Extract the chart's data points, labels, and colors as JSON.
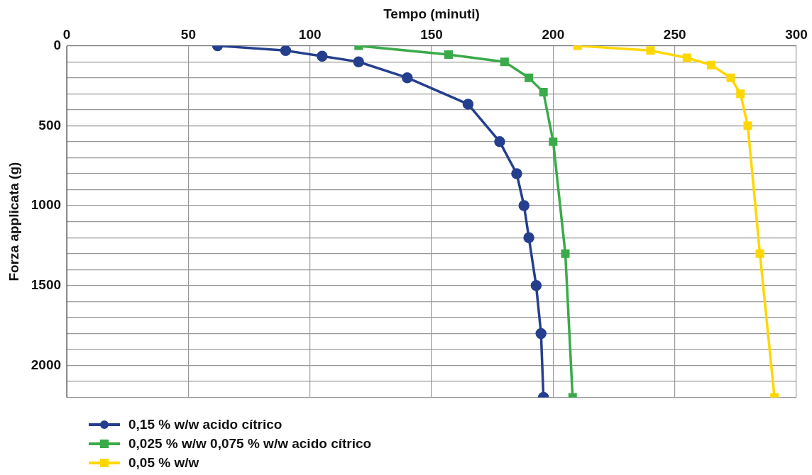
{
  "chart_data": {
    "type": "line",
    "xlabel": "Tempo (minuti)",
    "ylabel": "Forza applicata (g)",
    "xlim": [
      0,
      300
    ],
    "xticks": [
      0,
      50,
      100,
      150,
      200,
      250,
      300
    ],
    "ylim": [
      2200,
      0
    ],
    "yticks": [
      0,
      {
        "value": 100,
        "label": null
      },
      {
        "value": 200,
        "label": null
      },
      {
        "value": 300,
        "label": null
      },
      {
        "value": 400,
        "label": null
      },
      500,
      {
        "value": 600,
        "label": null
      },
      {
        "value": 700,
        "label": null
      },
      {
        "value": 800,
        "label": null
      },
      {
        "value": 900,
        "label": null
      },
      1000,
      {
        "value": 1100,
        "label": null
      },
      {
        "value": 1200,
        "label": null
      },
      {
        "value": 1300,
        "label": null
      },
      {
        "value": 1400,
        "label": null
      },
      1500,
      {
        "value": 1600,
        "label": null
      },
      {
        "value": 1700,
        "label": null
      },
      {
        "value": 1800,
        "label": null
      },
      {
        "value": 1900,
        "label": null
      },
      2000,
      {
        "value": 2100,
        "label": null
      },
      {
        "value": 2200,
        "label": null
      }
    ],
    "grid": true,
    "legend": "bottom left",
    "line_style": "solid",
    "series": [
      {
        "name": "0,15 % w/w acido cítrico",
        "color": "#253f8e",
        "marker": "circle",
        "x": [
          62,
          90,
          105,
          120,
          140,
          165,
          178,
          185,
          188,
          190,
          193,
          195,
          196
        ],
        "values": [
          0,
          30,
          65,
          100,
          200,
          365,
          600,
          800,
          1000,
          1200,
          1500,
          1800,
          2200
        ]
      },
      {
        "name": "0,025 % w/w 0,075 % w/w acido cítrico",
        "color": "#3aaa4a",
        "marker": "square",
        "x": [
          120,
          157,
          180,
          190,
          196,
          200,
          205,
          208
        ],
        "values": [
          0,
          55,
          100,
          200,
          290,
          600,
          1300,
          2200
        ]
      },
      {
        "name": "0,05 % w/w",
        "color": "#ffd700",
        "marker": "square",
        "x": [
          210,
          240,
          255,
          265,
          273,
          277,
          280,
          285,
          291
        ],
        "values": [
          0,
          30,
          75,
          120,
          200,
          300,
          500,
          1300,
          2200
        ]
      }
    ]
  }
}
